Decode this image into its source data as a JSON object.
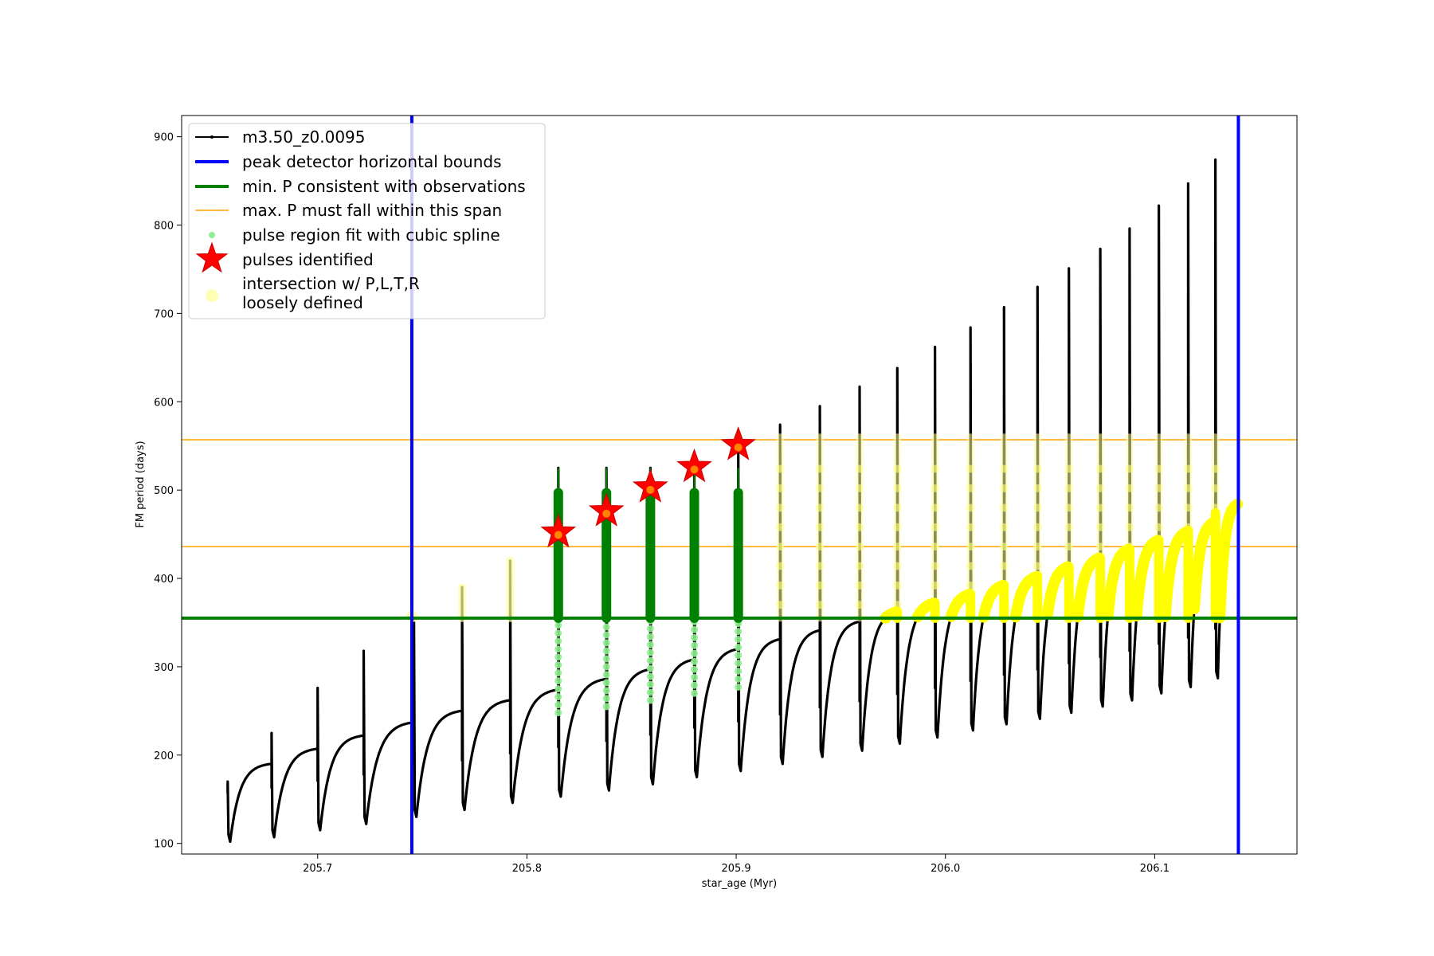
{
  "chart_data": {
    "type": "line",
    "title": "",
    "xlabel": "star_age (Myr)",
    "ylabel": "FM period (days)",
    "xlim": [
      205.635,
      206.168
    ],
    "ylim": [
      88,
      924
    ],
    "xticks": [
      205.7,
      205.8,
      205.9,
      206.0,
      206.1
    ],
    "xtick_labels": [
      "205.7",
      "205.8",
      "205.9",
      "206.0",
      "206.1"
    ],
    "yticks": [
      100,
      200,
      300,
      400,
      500,
      600,
      700,
      800,
      900
    ],
    "ytick_labels": [
      "100",
      "200",
      "300",
      "400",
      "500",
      "600",
      "700",
      "800",
      "900"
    ],
    "grid": false,
    "legend_position": "top-left",
    "legend": [
      {
        "label": "m3.50_z0.0095",
        "marker": "line-dot",
        "color": "#000000"
      },
      {
        "label": "peak detector horizontal bounds",
        "marker": "line",
        "color": "#0000ff"
      },
      {
        "label": "min. P consistent with observations",
        "marker": "line",
        "color": "#008000"
      },
      {
        "label": "max. P must fall within this span",
        "marker": "line",
        "color": "#ffa500"
      },
      {
        "label": "pulse region fit with cubic spline",
        "marker": "dot",
        "color": "#90ee90"
      },
      {
        "label": "pulses identified",
        "marker": "star",
        "color": "#ff0000"
      },
      {
        "label_lines": [
          "intersection w/ P,L,T,R",
          "loosely defined"
        ],
        "marker": "circle",
        "color": "#ffffa0"
      }
    ],
    "vertical_bounds": [
      205.745,
      206.14
    ],
    "min_period": 355,
    "max_period_span": [
      436,
      557
    ],
    "pulses": [
      {
        "start": 205.657,
        "base": 102,
        "end_value": 190,
        "spike_max": 170
      },
      {
        "start": 205.678,
        "base": 107,
        "end_value": 207,
        "spike_max": 225
      },
      {
        "start": 205.7,
        "base": 115,
        "end_value": 222,
        "spike_max": 276
      },
      {
        "start": 205.722,
        "base": 122,
        "end_value": 237,
        "spike_max": 318
      },
      {
        "start": 205.746,
        "base": 130,
        "end_value": 250,
        "spike_max": 356
      },
      {
        "start": 205.769,
        "base": 138,
        "end_value": 262,
        "spike_max": 390
      },
      {
        "start": 205.792,
        "base": 146,
        "end_value": 274,
        "spike_max": 420
      },
      {
        "start": 205.815,
        "base": 153,
        "end_value": 286,
        "spike_max": 525
      },
      {
        "start": 205.838,
        "base": 160,
        "end_value": 297,
        "spike_max": 525
      },
      {
        "start": 205.859,
        "base": 167,
        "end_value": 308,
        "spike_max": 525
      },
      {
        "start": 205.88,
        "base": 175,
        "end_value": 320,
        "spike_max": 525
      },
      {
        "start": 205.901,
        "base": 182,
        "end_value": 331,
        "spike_max": 550
      },
      {
        "start": 205.921,
        "base": 190,
        "end_value": 341,
        "spike_max": 574
      },
      {
        "start": 205.94,
        "base": 198,
        "end_value": 351,
        "spike_max": 595
      },
      {
        "start": 205.959,
        "base": 205,
        "end_value": 362,
        "spike_max": 617
      },
      {
        "start": 205.977,
        "base": 213,
        "end_value": 372,
        "spike_max": 638
      },
      {
        "start": 205.995,
        "base": 220,
        "end_value": 382,
        "spike_max": 662
      },
      {
        "start": 206.012,
        "base": 228,
        "end_value": 392,
        "spike_max": 684
      },
      {
        "start": 206.028,
        "base": 235,
        "end_value": 402,
        "spike_max": 707
      },
      {
        "start": 206.044,
        "base": 241,
        "end_value": 413,
        "spike_max": 730
      },
      {
        "start": 206.059,
        "base": 248,
        "end_value": 423,
        "spike_max": 751
      },
      {
        "start": 206.074,
        "base": 255,
        "end_value": 433,
        "spike_max": 773
      },
      {
        "start": 206.088,
        "base": 262,
        "end_value": 443,
        "spike_max": 796
      },
      {
        "start": 206.102,
        "base": 270,
        "end_value": 453,
        "spike_max": 822
      },
      {
        "start": 206.116,
        "base": 277,
        "end_value": 464,
        "spike_max": 847
      },
      {
        "start": 206.129,
        "base": 287,
        "end_value": 484,
        "spike_max": 874
      }
    ],
    "stars": [
      {
        "x": 205.815,
        "y": 452
      },
      {
        "x": 205.838,
        "y": 476
      },
      {
        "x": 205.859,
        "y": 503
      },
      {
        "x": 205.88,
        "y": 526
      },
      {
        "x": 205.901,
        "y": 551
      }
    ],
    "spline_pulses": [
      205.815,
      205.838,
      205.859,
      205.88,
      205.901
    ]
  }
}
